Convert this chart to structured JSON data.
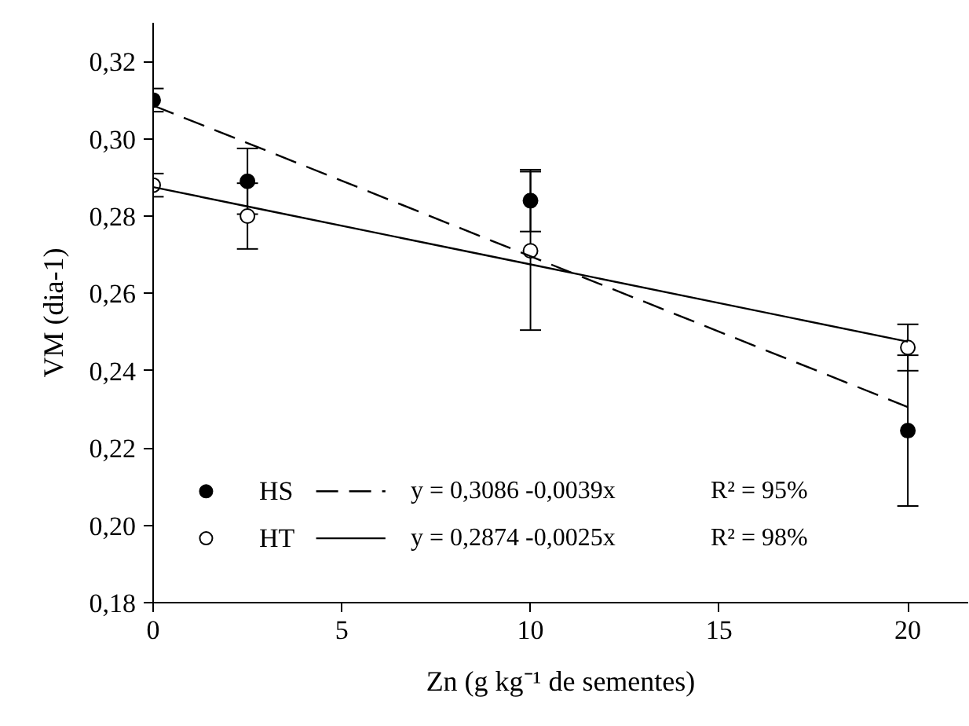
{
  "chart_data": {
    "type": "scatter",
    "xlabel": "Zn (g kg⁻¹ de sementes)",
    "ylabel": "VM (dia-1)",
    "x": [
      0,
      2.5,
      10,
      20
    ],
    "series": [
      {
        "name": "HS",
        "color": "#000000",
        "marker": "circle",
        "values": [
          0.31,
          0.289,
          0.284,
          0.2245
        ],
        "errors": [
          0.003,
          0.0085,
          0.008,
          0.0195
        ]
      },
      {
        "name": "HT",
        "color": "#ffffff",
        "marker": "circle",
        "values": [
          0.288,
          0.28,
          0.271,
          0.246
        ],
        "errors": [
          0.003,
          0.0085,
          0.0205,
          0.006
        ]
      },
      {
        "type": "line",
        "color": "#000000",
        "line_style": "dashed",
        "values": [
          0.3086,
          0.2989,
          0.2696,
          0.2306
        ]
      },
      {
        "type": "line",
        "color": "#000000",
        "line_style": "solid",
        "values": [
          0.2875,
          0.2825,
          0.2675,
          0.2475
        ]
      }
    ],
    "annotations": [
      "y = 0,3086 -0,0039x",
      "R² = 95%",
      "y = 0,2874 -0,0025x",
      "R² = 98%"
    ],
    "xlim": [
      0,
      21.6
    ],
    "ylim": [
      0.18,
      0.33
    ],
    "xticks": [
      0,
      5,
      10,
      15,
      20
    ],
    "yticks": [
      {
        "value": 0.18,
        "label": "0,18"
      },
      {
        "value": 0.2,
        "label": "0,20"
      },
      {
        "value": 0.22,
        "label": "0,22"
      },
      {
        "value": 0.24,
        "label": "0,24"
      },
      {
        "value": 0.26,
        "label": "0,26"
      },
      {
        "value": 0.28,
        "label": "0,28"
      },
      {
        "value": 0.3,
        "label": "0,30"
      },
      {
        "value": 0.32,
        "label": "0,32"
      }
    ],
    "grid": false,
    "legend": "bottom left"
  }
}
